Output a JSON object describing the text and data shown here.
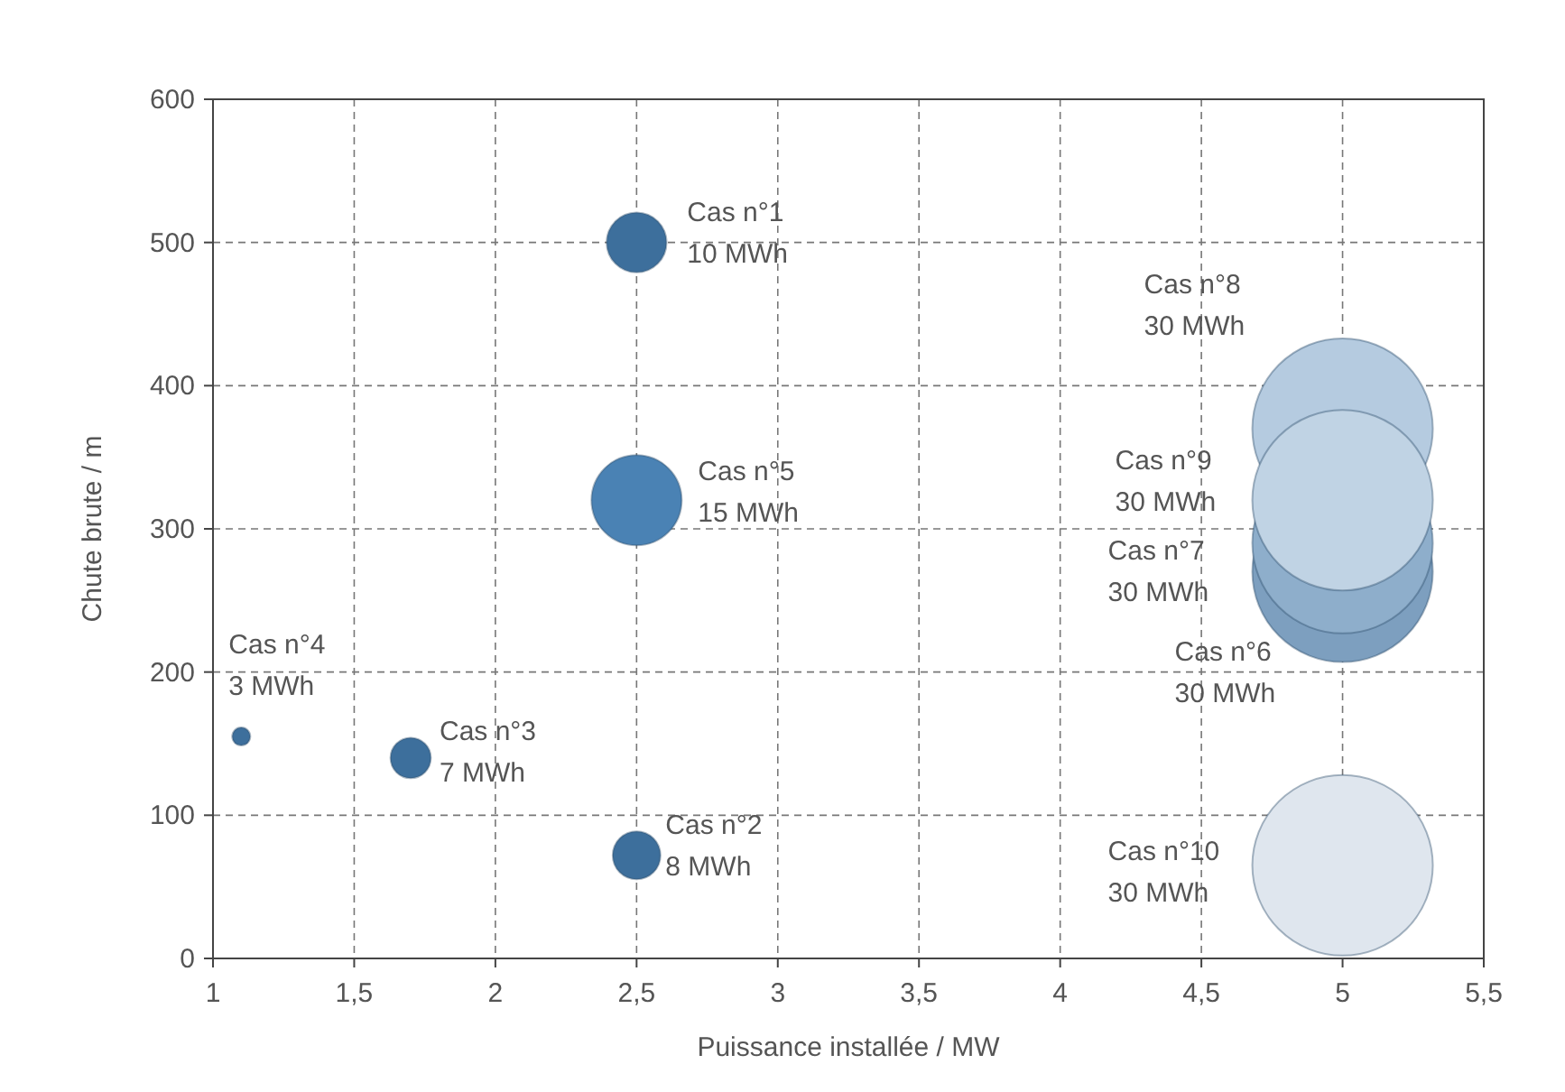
{
  "chart_data": {
    "type": "bubble",
    "xlabel": "Puissance installée / MW",
    "ylabel": "Chute brute / m",
    "xlim": [
      1,
      5.5
    ],
    "xticks": [
      1,
      {
        "value": 1.5,
        "label": "1,5"
      },
      2,
      {
        "value": 2.5,
        "label": "2,5"
      },
      3,
      {
        "value": 3.5,
        "label": "3,5"
      },
      4,
      {
        "value": 4.5,
        "label": "4,5"
      },
      5,
      {
        "value": 5.5,
        "label": "5,5"
      }
    ],
    "ylim": [
      0,
      600
    ],
    "yticks": [
      0,
      100,
      200,
      300,
      400,
      500,
      600
    ],
    "grid": true,
    "series": [
      {
        "x": [
          2.5,
          2.5,
          1.7,
          1.1,
          2.5,
          5,
          5,
          5,
          5,
          5
        ],
        "values": [
          500,
          72,
          140,
          155,
          320,
          270,
          290,
          370,
          320,
          65
        ],
        "sizes": [
          0.11,
          0.07,
          0.05,
          0.01,
          0.25,
          1,
          1,
          1,
          1,
          1
        ],
        "colors": [
          "#3d6f9c",
          "#3d6f9c",
          "#3d6f9c",
          "#3d6f9c",
          "#4a82b4",
          "#7d9fbf",
          "#8eaecb",
          "#b5cbe0",
          "#c0d3e4",
          "#dfe6ee"
        ],
        "value_labels": [
          "Cas n°1\n10 MWh",
          "Cas n°2\n8 MWh",
          "Cas n°3\n7 MWh",
          "Cas n°4\n3 MWh",
          "Cas n°5\n15 MWh",
          "Cas n°6\n30 MWh",
          "Cas n°7\n30 MWh",
          "Cas n°8\n30 MWh",
          "Cas n°9\n30 MWh",
          "Cas n°10\n30 MWh"
        ]
      }
    ]
  }
}
